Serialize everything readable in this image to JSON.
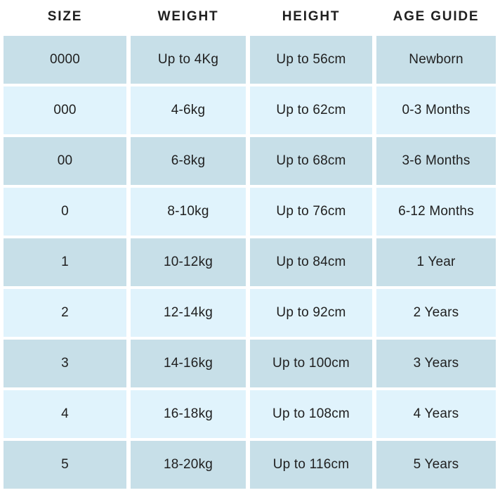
{
  "title": "Size guide table",
  "colors": {
    "row_dark": "#c7dfe8",
    "row_light": "#e0f3fc",
    "text": "#202020",
    "background": "#ffffff"
  },
  "chart_data": {
    "type": "table",
    "columns": [
      "SIZE",
      "WEIGHT",
      "HEIGHT",
      "AGE GUIDE"
    ],
    "rows": [
      [
        "0000",
        "Up to 4Kg",
        "Up to 56cm",
        "Newborn"
      ],
      [
        "000",
        "4-6kg",
        "Up to 62cm",
        "0-3 Months"
      ],
      [
        "00",
        "6-8kg",
        "Up to 68cm",
        "3-6 Months"
      ],
      [
        "0",
        "8-10kg",
        "Up to 76cm",
        "6-12 Months"
      ],
      [
        "1",
        "10-12kg",
        "Up to 84cm",
        "1 Year"
      ],
      [
        "2",
        "12-14kg",
        "Up to 92cm",
        "2 Years"
      ],
      [
        "3",
        "14-16kg",
        "Up to 100cm",
        "3 Years"
      ],
      [
        "4",
        "16-18kg",
        "Up to 108cm",
        "4 Years"
      ],
      [
        "5",
        "18-20kg",
        "Up to 116cm",
        "5 Years"
      ]
    ],
    "layout": {
      "header_position": "top",
      "row_striping": "alternating",
      "first_data_row_shade": "dark"
    }
  }
}
